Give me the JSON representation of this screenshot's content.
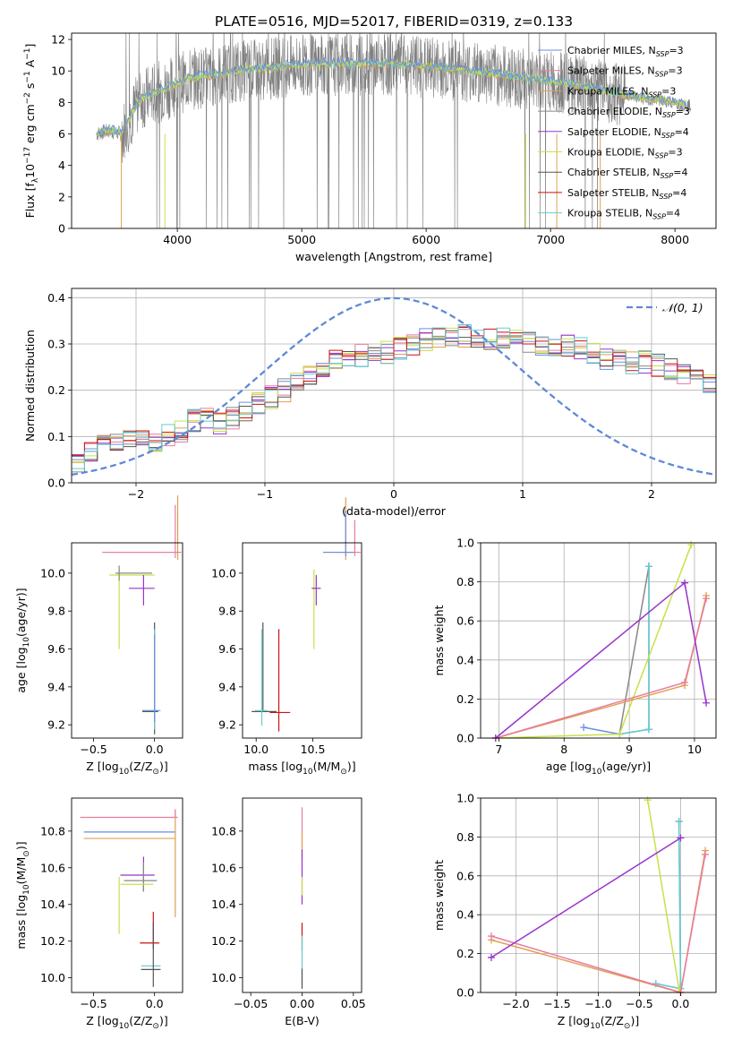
{
  "title": "PLATE=0516, MJD=52017, FIBERID=0319, z=0.133",
  "colors": [
    "#6c8ee0",
    "#e87c9e",
    "#e0a050",
    "#888888",
    "#9933cc",
    "#c8e04a",
    "#555555",
    "#cc1111",
    "#66cccc"
  ],
  "legend_models": [
    {
      "pre": "Chabrier MILES, N",
      "sub": "SSP",
      "post": "=3"
    },
    {
      "pre": "Salpeter MILES, N",
      "sub": "SSP",
      "post": "=3"
    },
    {
      "pre": "Kroupa MILES, N",
      "sub": "SSP",
      "post": "=3"
    },
    {
      "pre": "Chabrier ELODIE, N",
      "sub": "SSP",
      "post": "=3"
    },
    {
      "pre": "Salpeter ELODIE, N",
      "sub": "SSP",
      "post": "=4"
    },
    {
      "pre": "Kroupa ELODIE, N",
      "sub": "SSP",
      "post": "=3"
    },
    {
      "pre": "Chabrier STELIB, N",
      "sub": "SSP",
      "post": "=4"
    },
    {
      "pre": "Salpeter STELIB, N",
      "sub": "SSP",
      "post": "=4"
    },
    {
      "pre": "Kroupa STELIB, N",
      "sub": "SSP",
      "post": "=4"
    }
  ],
  "chart_data": [
    {
      "type": "line",
      "title": "PLATE=0516, MJD=52017, FIBERID=0319, z=0.133",
      "xlabel": "wavelength [Angstrom, rest frame]",
      "ylabel_parts": {
        "pre": "Flux [f",
        "sub": "λ",
        "mid": "10",
        "sup1": "−17",
        "post1": " erg cm",
        "sup2": "−2",
        "post2": " s",
        "sup3": "−1",
        "post3": " A",
        "sup4": "−1",
        "post4": "]"
      },
      "xlim": [
        3150,
        8330
      ],
      "ylim": [
        0,
        12.4
      ],
      "xticks": [
        4000,
        5000,
        6000,
        7000,
        8000
      ],
      "yticks": [
        0,
        2,
        4,
        6,
        8,
        10,
        12
      ],
      "data_x": [
        3350,
        8130
      ],
      "model_x": [
        3350,
        3450,
        3550,
        3700,
        3900,
        4100,
        4300,
        4500,
        4700,
        4900,
        5100,
        5300,
        5500,
        5700,
        5900,
        6100,
        6300,
        6500,
        6700,
        6900,
        7100,
        7300,
        7500,
        7700,
        7900,
        8100
      ],
      "model_y": [
        6.0,
        6.2,
        6.0,
        8.2,
        8.8,
        9.5,
        9.7,
        10.0,
        10.1,
        10.3,
        10.4,
        10.4,
        10.4,
        10.4,
        10.3,
        10.2,
        10.0,
        9.8,
        9.6,
        9.4,
        9.2,
        8.9,
        8.6,
        8.3,
        8.1,
        7.8
      ],
      "grid": false,
      "legend": "upper right"
    },
    {
      "type": "line",
      "xlabel": "(data-model)/error",
      "ylabel": "Normed distribution",
      "xlim": [
        -2.5,
        2.5
      ],
      "ylim": [
        0,
        0.42
      ],
      "xticks": [
        -2,
        -1,
        0,
        1,
        2
      ],
      "xtick_labels": [
        "−2",
        "−1",
        "0",
        "1",
        "2"
      ],
      "yticks": [
        0.0,
        0.1,
        0.2,
        0.3,
        0.4
      ],
      "ytick_labels": [
        "0.0",
        "0.1",
        "0.2",
        "0.3",
        "0.4"
      ],
      "gaussian_label": "𝒩(0, 1)",
      "hist_x0": -2.5,
      "hist_bin": 0.1,
      "hist_base": [
        0.04,
        0.063,
        0.078,
        0.082,
        0.09,
        0.088,
        0.092,
        0.102,
        0.112,
        0.135,
        0.14,
        0.13,
        0.14,
        0.15,
        0.17,
        0.185,
        0.2,
        0.215,
        0.23,
        0.245,
        0.262,
        0.268,
        0.275,
        0.28,
        0.282,
        0.29,
        0.3,
        0.31,
        0.318,
        0.316,
        0.318,
        0.314,
        0.31,
        0.312,
        0.315,
        0.305,
        0.3,
        0.298,
        0.295,
        0.29,
        0.28,
        0.27,
        0.265,
        0.26,
        0.262,
        0.255,
        0.245,
        0.238,
        0.228,
        0.215,
        0.21,
        0.2,
        0.19,
        0.175,
        0.16,
        0.15,
        0.148,
        0.14,
        0.125,
        0.118,
        0.11,
        0.105,
        0.1,
        0.095,
        0.09,
        0.085,
        0.08,
        0.075,
        0.068,
        0.06,
        0.05,
        0.05
      ],
      "grid": true,
      "legend": "upper right"
    },
    {
      "type": "scatter",
      "xlabel_parts": {
        "pre": "Z [log",
        "sub": "10",
        "post": "(Z/Z",
        "sub2": "⊙",
        "post2": ")]"
      },
      "ylabel_parts": {
        "pre": "age  [log",
        "sub": "10",
        "post": "(age/yr)]"
      },
      "xlim": [
        -0.68,
        0.23
      ],
      "ylim": [
        9.13,
        10.16
      ],
      "xticks": [
        -0.5,
        0.0
      ],
      "xtick_labels": [
        "−0.5",
        "0.0"
      ],
      "yticks": [
        9.2,
        9.4,
        9.6,
        9.8,
        10.0
      ],
      "yticks_labels": [
        "9.2",
        "9.4",
        "9.6",
        "9.8",
        "10.0"
      ],
      "points": [
        {
          "x": 0.19,
          "y": 10.11,
          "x_err": [
            0.6,
            0.02
          ],
          "y_err": [
            0.04,
            0.3
          ],
          "c": 2
        },
        {
          "x": 0.17,
          "y": 10.11,
          "x_err": [
            0.6,
            0.05
          ],
          "y_err": [
            0.03,
            0.25
          ],
          "c": 1
        },
        {
          "x": -0.29,
          "y": 9.99,
          "x_err": [
            0.08,
            0.29
          ],
          "y_err": [
            0.39,
            0.04
          ],
          "c": 5
        },
        {
          "x": -0.29,
          "y": 10.0,
          "x_err": [
            0.03,
            0.27
          ],
          "y_err": [
            0.04,
            0.04
          ],
          "c": 3
        },
        {
          "x": -0.09,
          "y": 9.92,
          "x_err": [
            0.12,
            0.09
          ],
          "y_err": [
            0.09,
            0.07
          ],
          "c": 4
        },
        {
          "x": 0.0,
          "y": 9.27,
          "x_err": [
            0.1,
            0.03
          ],
          "y_err": [
            0.12,
            0.47
          ],
          "c": 6
        },
        {
          "x": 0.0,
          "y": 9.275,
          "x_err": [
            0.1,
            0.05
          ],
          "y_err": [
            0.1,
            0.43
          ],
          "c": 8
        },
        {
          "x": 0.0,
          "y": 9.275,
          "x_err": [
            0.1,
            0.04
          ],
          "y_err": [
            0.06,
            0.4
          ],
          "c": 0
        }
      ]
    },
    {
      "type": "scatter",
      "xlabel_parts": {
        "pre": "mass [log",
        "sub": "10",
        "post": "(M/M",
        "sub2": "⊙",
        "post2": ")]"
      },
      "xlim": [
        9.88,
        10.93
      ],
      "ylim": [
        9.13,
        10.16
      ],
      "xticks": [
        10.0,
        10.5
      ],
      "xtick_labels": [
        "10.0",
        "10.5"
      ],
      "yticks": [
        9.2,
        9.4,
        9.6,
        9.8,
        10.0
      ],
      "yticks_labels": [
        "9.2",
        "9.4",
        "9.6",
        "9.8",
        "10.0"
      ],
      "points": [
        {
          "x": 10.79,
          "y": 10.11,
          "x_err": [
            0.2,
            0.13
          ],
          "y_err": [
            0.04,
            0.29
          ],
          "c": 2
        },
        {
          "x": 10.87,
          "y": 10.11,
          "x_err": [
            0.15,
            0.05
          ],
          "y_err": [
            0.02,
            0.17
          ],
          "c": 1
        },
        {
          "x": 10.79,
          "y": 10.11,
          "x_err": [
            0.2,
            0.07
          ],
          "y_err": [
            0.02,
            0.22
          ],
          "c": 0
        },
        {
          "x": 10.51,
          "y": 9.99,
          "x_err": [
            0.0,
            0.0
          ],
          "y_err": [
            0.39,
            0.03
          ],
          "c": 5
        },
        {
          "x": 10.53,
          "y": 9.92,
          "x_err": [
            0.04,
            0.04
          ],
          "y_err": [
            0.09,
            0.07
          ],
          "c": 4
        },
        {
          "x": 10.06,
          "y": 9.27,
          "x_err": [
            0.1,
            0.12
          ],
          "y_err": [
            0.0,
            0.47
          ],
          "c": 6
        },
        {
          "x": 10.2,
          "y": 9.265,
          "x_err": [
            0.08,
            0.1
          ],
          "y_err": [
            0.1,
            0.44
          ],
          "c": 7
        },
        {
          "x": 10.05,
          "y": 9.275,
          "x_err": [
            0.06,
            0.05
          ],
          "y_err": [
            0.08,
            0.43
          ],
          "c": 8
        }
      ]
    },
    {
      "type": "line",
      "xlabel_parts": {
        "pre": "age  [log",
        "sub": "10",
        "post": "(age/yr)]"
      },
      "ylabel": "mass weight",
      "xlim": [
        6.72,
        10.33
      ],
      "ylim": [
        0,
        1.0
      ],
      "xticks": [
        7,
        8,
        9,
        10
      ],
      "yticks": [
        0.0,
        0.2,
        0.4,
        0.6,
        0.8,
        1.0
      ],
      "yticks_labels": [
        "0.0",
        "0.2",
        "0.4",
        "0.6",
        "0.8",
        "1.0"
      ],
      "grid": true,
      "series": [
        {
          "c": 0,
          "x": [
            8.3,
            8.85,
            9.3,
            9.3
          ],
          "y": [
            0.055,
            0.02,
            0.045,
            0.88
          ]
        },
        {
          "c": 3,
          "x": [
            8.85,
            9.3
          ],
          "y": [
            0.02,
            0.88
          ]
        },
        {
          "c": 8,
          "x": [
            8.85,
            9.3,
            9.3
          ],
          "y": [
            0.02,
            0.045,
            0.88
          ]
        },
        {
          "c": 5,
          "x": [
            6.95,
            8.85,
            9.95
          ],
          "y": [
            0.0,
            0.02,
            0.99
          ]
        },
        {
          "c": 2,
          "x": [
            6.95,
            9.85,
            10.18
          ],
          "y": [
            0.0,
            0.27,
            0.73
          ]
        },
        {
          "c": 1,
          "x": [
            6.95,
            9.85,
            10.18
          ],
          "y": [
            0.0,
            0.285,
            0.715
          ]
        },
        {
          "c": 4,
          "x": [
            6.95,
            9.85,
            10.18
          ],
          "y": [
            0.0,
            0.795,
            0.18
          ]
        }
      ]
    },
    {
      "type": "scatter",
      "xlabel_parts": {
        "pre": "Z [log",
        "sub": "10",
        "post": "(Z/Z",
        "sub2": "⊙",
        "post2": ")]"
      },
      "ylabel_parts": {
        "pre": "mass [log",
        "sub": "10",
        "post": "(M/M",
        "sub2": "⊙",
        "post2": ")]"
      },
      "xlim": [
        -0.68,
        0.23
      ],
      "ylim": [
        9.92,
        10.98
      ],
      "xticks": [
        -0.5,
        0.0
      ],
      "xtick_labels": [
        "−0.5",
        "0.0"
      ],
      "yticks": [
        10.0,
        10.2,
        10.4,
        10.6,
        10.8
      ],
      "yticks_labels": [
        "10.0",
        "10.2",
        "10.4",
        "10.6",
        "10.8"
      ],
      "points": [
        {
          "x": 0.19,
          "y": 10.875,
          "x_err": [
            0.8,
            0.0
          ],
          "y_err": [
            0.0,
            0.0
          ],
          "c": 1
        },
        {
          "x": 0.17,
          "y": 10.795,
          "x_err": [
            0.75,
            0.0
          ],
          "y_err": [
            0.0,
            0.0
          ],
          "c": 0
        },
        {
          "x": 0.17,
          "y": 10.76,
          "x_err": [
            0.75,
            0.0
          ],
          "y_err": [
            0.43,
            0.15
          ],
          "c": 2
        },
        {
          "x": 0.17,
          "y": 10.87,
          "x_err": [
            0.0,
            0.0
          ],
          "y_err": [
            0.0,
            0.05
          ],
          "c": 1
        },
        {
          "x": -0.09,
          "y": 10.56,
          "x_err": [
            0.19,
            0.09
          ],
          "y_err": [
            0.09,
            0.1
          ],
          "c": 4
        },
        {
          "x": -0.09,
          "y": 10.53,
          "x_err": [
            0.16,
            0.11
          ],
          "y_err": [
            0.06,
            0.1
          ],
          "c": 3
        },
        {
          "x": -0.29,
          "y": 10.51,
          "x_err": [
            0.0,
            0.0
          ],
          "y_err": [
            0.27,
            0.04
          ],
          "c": 5
        },
        {
          "x": -0.28,
          "y": 10.51,
          "x_err": [
            0.0,
            0.27
          ],
          "y_err": [
            0.0,
            0.0
          ],
          "c": 5
        },
        {
          "x": -0.01,
          "y": 10.19,
          "x_err": [
            0.11,
            0.05
          ],
          "y_err": [
            0.03,
            0.17
          ],
          "c": 7
        },
        {
          "x": 0.0,
          "y": 10.065,
          "x_err": [
            0.11,
            0.05
          ],
          "y_err": [
            0.0,
            0.0
          ],
          "c": 8
        },
        {
          "x": 0.0,
          "y": 10.045,
          "x_err": [
            0.11,
            0.05
          ],
          "y_err": [
            0.0,
            0.0
          ],
          "c": 6
        },
        {
          "x": -0.01,
          "y": 10.1,
          "x_err": [
            0.0,
            0.0
          ],
          "y_err": [
            0.15,
            0.2
          ],
          "c": 6
        }
      ]
    },
    {
      "type": "scatter",
      "xlabel": "E(B-V)",
      "xlim": [
        -0.058,
        0.058
      ],
      "ylim": [
        9.92,
        10.98
      ],
      "xticks": [
        -0.05,
        0.0,
        0.05
      ],
      "xtick_labels": [
        "−0.05",
        "0.00",
        "0.05"
      ],
      "yticks": [
        10.0,
        10.2,
        10.4,
        10.6,
        10.8
      ],
      "yticks_labels": [
        "10.0",
        "10.2",
        "10.4",
        "10.6",
        "10.8"
      ],
      "points": [
        {
          "x": 0.0,
          "y": 10.79,
          "x_err": [
            0,
            0
          ],
          "y_err": [
            0.08,
            0.14
          ],
          "c": 1
        },
        {
          "x": 0.0,
          "y": 10.7,
          "x_err": [
            0,
            0
          ],
          "y_err": [
            0.06,
            0.1
          ],
          "c": 2
        },
        {
          "x": 0.0,
          "y": 10.55,
          "x_err": [
            0,
            0
          ],
          "y_err": [
            0.15,
            0.15
          ],
          "c": 4
        },
        {
          "x": 0.0,
          "y": 10.5,
          "x_err": [
            0,
            0
          ],
          "y_err": [
            0.05,
            0.05
          ],
          "c": 5
        },
        {
          "x": 0.0,
          "y": 10.2,
          "x_err": [
            0,
            0
          ],
          "y_err": [
            0.05,
            0.1
          ],
          "c": 7
        },
        {
          "x": 0.0,
          "y": 10.08,
          "x_err": [
            0,
            0
          ],
          "y_err": [
            0.13,
            0.15
          ],
          "c": 8
        },
        {
          "x": 0.0,
          "y": 10.0,
          "x_err": [
            0,
            0
          ],
          "y_err": [
            0.06,
            0.05
          ],
          "c": 6
        }
      ]
    },
    {
      "type": "line",
      "xlabel_parts": {
        "pre": "Z [log",
        "sub": "10",
        "post": "(Z/Z",
        "sub2": "⊙",
        "post2": ")]"
      },
      "ylabel": "mass weight",
      "xlim": [
        -2.43,
        0.43
      ],
      "ylim": [
        0,
        1.0
      ],
      "xticks": [
        -2.0,
        -1.5,
        -1.0,
        -0.5,
        0.0
      ],
      "xtick_labels": [
        "−2.0",
        "−1.5",
        "−1.0",
        "−0.5",
        "0.0"
      ],
      "yticks": [
        0.0,
        0.2,
        0.4,
        0.6,
        0.8,
        1.0
      ],
      "yticks_labels": [
        "0.0",
        "0.2",
        "0.4",
        "0.6",
        "0.8",
        "1.0"
      ],
      "grid": true,
      "series": [
        {
          "c": 0,
          "x": [
            -0.3,
            0.0,
            -0.02
          ],
          "y": [
            0.045,
            0.02,
            0.88
          ]
        },
        {
          "c": 8,
          "x": [
            -0.3,
            0.0,
            -0.02
          ],
          "y": [
            0.045,
            0.02,
            0.88
          ]
        },
        {
          "c": 5,
          "x": [
            -0.4,
            -0.02,
            0.0
          ],
          "y": [
            0.99,
            0.02,
            0.0
          ]
        },
        {
          "c": 2,
          "x": [
            -2.3,
            0.0,
            0.3
          ],
          "y": [
            0.27,
            0.0,
            0.73
          ]
        },
        {
          "c": 1,
          "x": [
            -2.3,
            0.0,
            0.3
          ],
          "y": [
            0.29,
            0.0,
            0.71
          ]
        },
        {
          "c": 4,
          "x": [
            -2.3,
            0.0
          ],
          "y": [
            0.18,
            0.795
          ]
        }
      ]
    }
  ]
}
